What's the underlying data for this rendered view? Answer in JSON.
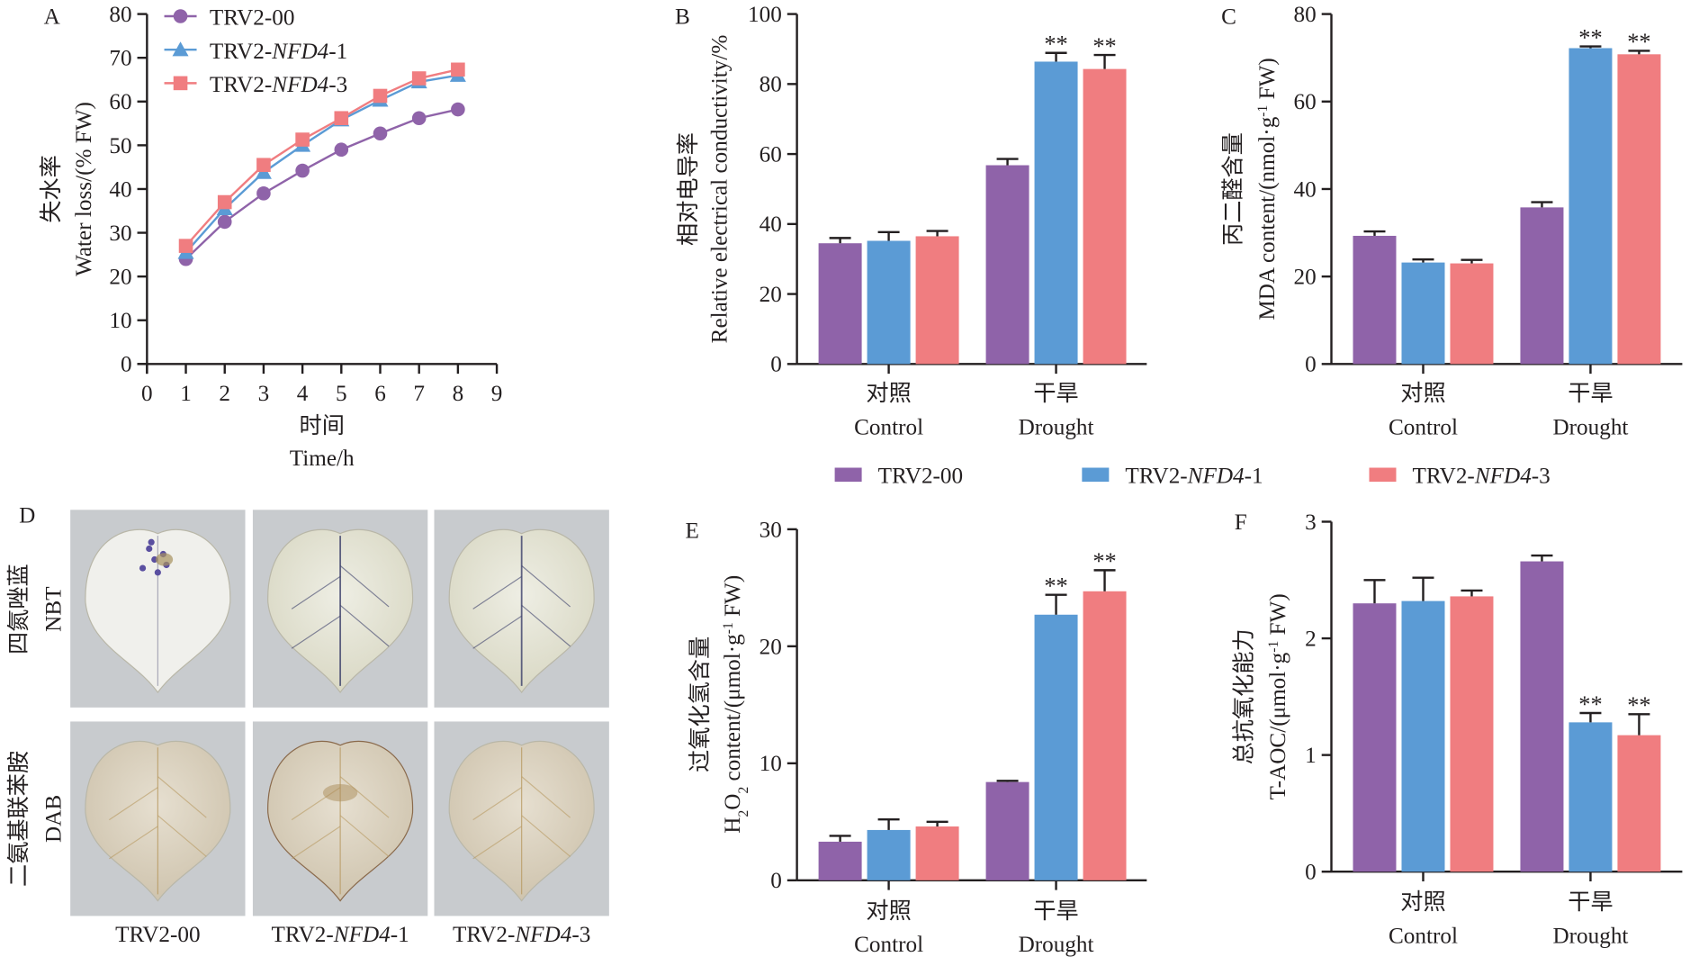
{
  "colors": {
    "TRV2-00": "#8f63a9",
    "TRV2-NFD4-1": "#5b9bd5",
    "TRV2-NFD4-3": "#f07d80",
    "axis": "#231f20"
  },
  "legend": [
    {
      "parts": [
        {
          "t": "TRV2-00"
        }
      ]
    },
    {
      "parts": [
        {
          "t": "TRV2-"
        },
        {
          "t": "NFD4",
          "i": true
        },
        {
          "t": "-1"
        }
      ]
    },
    {
      "parts": [
        {
          "t": "TRV2-"
        },
        {
          "t": "NFD4",
          "i": true
        },
        {
          "t": "-3"
        }
      ]
    }
  ],
  "chart_data": [
    {
      "panel": "A",
      "type": "line",
      "x": [
        1,
        2,
        3,
        4,
        5,
        6,
        7,
        8
      ],
      "xlim": [
        0,
        9
      ],
      "xticks": [
        0,
        1,
        2,
        3,
        4,
        5,
        6,
        7,
        8,
        9
      ],
      "ylim": [
        0,
        80
      ],
      "yticks": [
        0,
        10,
        20,
        30,
        40,
        50,
        60,
        70,
        80
      ],
      "xlabel_cn": "时间",
      "xlabel": "Time/h",
      "ylabel_cn": "失水率",
      "ylabel": [
        {
          "t": "Water loss/(% FW)"
        }
      ],
      "legend_position": "top-left",
      "series": [
        {
          "name": "TRV2-00",
          "marker": "circle",
          "values": [
            24.0,
            32.5,
            39.0,
            44.2,
            49.0,
            52.7,
            56.2,
            58.2
          ]
        },
        {
          "name": "TRV2-NFD4-1",
          "marker": "triangle",
          "values": [
            25.5,
            35.5,
            43.8,
            50.0,
            55.8,
            60.3,
            64.5,
            66.0
          ]
        },
        {
          "name": "TRV2-NFD4-3",
          "marker": "square",
          "values": [
            27.0,
            37.0,
            45.5,
            51.3,
            56.2,
            61.3,
            65.3,
            67.3
          ]
        }
      ]
    },
    {
      "panel": "B",
      "type": "bar",
      "categories": [
        {
          "cn": "对照",
          "en": "Control"
        },
        {
          "cn": "干旱",
          "en": "Drought"
        }
      ],
      "ylim": [
        0,
        100
      ],
      "yticks": [
        0,
        20,
        40,
        60,
        80,
        100
      ],
      "ylabel_cn": "相对电导率",
      "ylabel": [
        {
          "t": "Relative electrical conductivity/%"
        }
      ],
      "series": [
        {
          "name": "TRV2-00",
          "values": [
            34.5,
            56.8
          ],
          "errors": [
            1.5,
            1.8
          ],
          "sig": [
            "",
            ""
          ]
        },
        {
          "name": "TRV2-NFD4-1",
          "values": [
            35.2,
            86.4
          ],
          "errors": [
            2.5,
            2.5
          ],
          "sig": [
            "",
            "**"
          ]
        },
        {
          "name": "TRV2-NFD4-3",
          "values": [
            36.5,
            84.3
          ],
          "errors": [
            1.5,
            4.0
          ],
          "sig": [
            "",
            "**"
          ]
        }
      ]
    },
    {
      "panel": "C",
      "type": "bar",
      "categories": [
        {
          "cn": "对照",
          "en": "Control"
        },
        {
          "cn": "干旱",
          "en": "Drought"
        }
      ],
      "ylim": [
        0,
        80
      ],
      "yticks": [
        0,
        20,
        40,
        60,
        80
      ],
      "ylabel_cn": "丙二醛含量",
      "ylabel": [
        {
          "t": "MDA content/(nmol·g"
        },
        {
          "t": "-1",
          "sup": true
        },
        {
          "t": " FW)"
        }
      ],
      "series": [
        {
          "name": "TRV2-00",
          "values": [
            29.3,
            35.8
          ],
          "errors": [
            1.0,
            1.2
          ],
          "sig": [
            "",
            ""
          ]
        },
        {
          "name": "TRV2-NFD4-1",
          "values": [
            23.2,
            72.2
          ],
          "errors": [
            0.7,
            0.4
          ],
          "sig": [
            "",
            "**"
          ]
        },
        {
          "name": "TRV2-NFD4-3",
          "values": [
            23.0,
            70.8
          ],
          "errors": [
            0.8,
            0.8
          ],
          "sig": [
            "",
            "**"
          ]
        }
      ]
    },
    {
      "panel": "E",
      "type": "bar",
      "categories": [
        {
          "cn": "对照",
          "en": "Control"
        },
        {
          "cn": "干旱",
          "en": "Drought"
        }
      ],
      "ylim": [
        0,
        30
      ],
      "yticks": [
        0,
        10,
        20,
        30
      ],
      "ylabel_cn": "过氧化氢含量",
      "ylabel": [
        {
          "t": "H"
        },
        {
          "t": "2",
          "sub": true
        },
        {
          "t": "O"
        },
        {
          "t": "2",
          "sub": true
        },
        {
          "t": " content/(μmol·g"
        },
        {
          "t": "-1",
          "sup": true
        },
        {
          "t": " FW)"
        }
      ],
      "series": [
        {
          "name": "TRV2-00",
          "values": [
            3.3,
            8.4
          ],
          "errors": [
            0.5,
            0.1
          ],
          "sig": [
            "",
            ""
          ]
        },
        {
          "name": "TRV2-NFD4-1",
          "values": [
            4.3,
            22.7
          ],
          "errors": [
            0.9,
            1.7
          ],
          "sig": [
            "",
            "**"
          ]
        },
        {
          "name": "TRV2-NFD4-3",
          "values": [
            4.6,
            24.7
          ],
          "errors": [
            0.4,
            1.8
          ],
          "sig": [
            "",
            "**"
          ]
        }
      ]
    },
    {
      "panel": "F",
      "type": "bar",
      "categories": [
        {
          "cn": "对照",
          "en": "Control"
        },
        {
          "cn": "干旱",
          "en": "Drought"
        }
      ],
      "ylim": [
        0,
        3
      ],
      "yticks": [
        0,
        1,
        2,
        3
      ],
      "ylabel_cn": "总抗氧化能力",
      "ylabel": [
        {
          "t": "T-AOC/(μmol·g"
        },
        {
          "t": "-1",
          "sup": true
        },
        {
          "t": " FW)"
        }
      ],
      "series": [
        {
          "name": "TRV2-00",
          "values": [
            2.3,
            2.66
          ],
          "errors": [
            0.2,
            0.05
          ],
          "sig": [
            "",
            ""
          ]
        },
        {
          "name": "TRV2-NFD4-1",
          "values": [
            2.32,
            1.28
          ],
          "errors": [
            0.2,
            0.08
          ],
          "sig": [
            "",
            "**"
          ]
        },
        {
          "name": "TRV2-NFD4-3",
          "values": [
            2.36,
            1.17
          ],
          "errors": [
            0.05,
            0.18
          ],
          "sig": [
            "",
            "**"
          ]
        }
      ]
    }
  ],
  "panel_d": {
    "panel": "D",
    "rows": [
      {
        "cn": "四氮唑蓝",
        "en": "NBT"
      },
      {
        "cn": "二氨基联苯胺",
        "en": "DAB"
      }
    ],
    "columns": [
      [
        {
          "t": "TRV2-00"
        }
      ],
      [
        {
          "t": "TRV2-"
        },
        {
          "t": "NFD4",
          "i": true
        },
        {
          "t": "-1"
        }
      ],
      [
        {
          "t": "TRV2-"
        },
        {
          "t": "NFD4",
          "i": true
        },
        {
          "t": "-3"
        }
      ]
    ]
  }
}
